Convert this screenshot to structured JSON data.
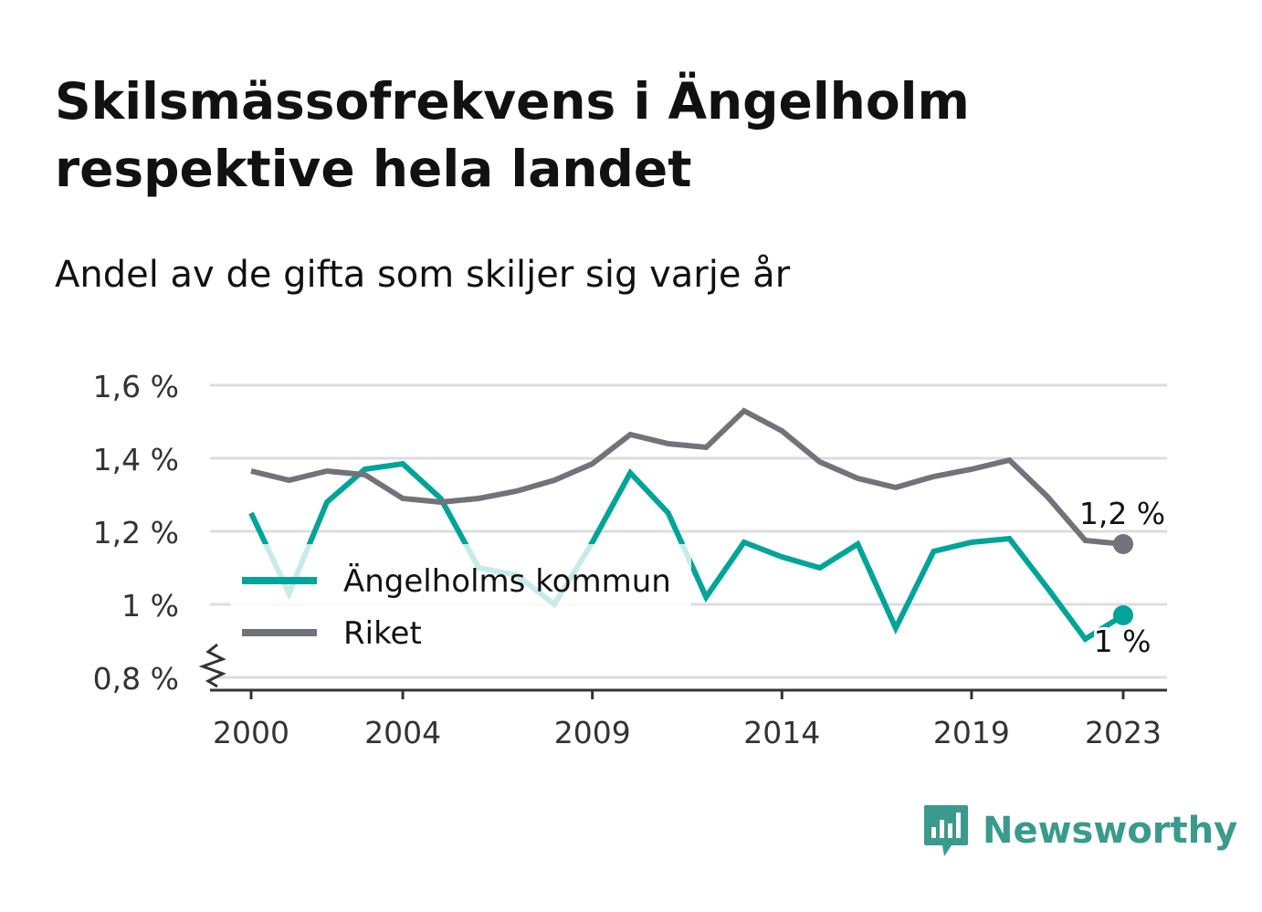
{
  "title": "Skilsmässofrekvens i Ängelholm respektive hela landet",
  "subtitle": "Andel av de gifta som skiljer sig varje år",
  "brand": {
    "name": "Newsworthy",
    "icon": "newsworthy-bar-chart-icon",
    "color": "#3a9a8b"
  },
  "colors": {
    "angelholm": "#00a499",
    "riket": "#72727a",
    "grid": "#dddddd",
    "axis": "#333333"
  },
  "chart_data": {
    "type": "line",
    "title": "Skilsmässofrekvens i Ängelholm respektive hela landet",
    "subtitle": "Andel av de gifta som skiljer sig varje år",
    "x": [
      2000,
      2001,
      2002,
      2003,
      2004,
      2005,
      2006,
      2007,
      2008,
      2009,
      2010,
      2011,
      2012,
      2013,
      2014,
      2015,
      2016,
      2017,
      2018,
      2019,
      2020,
      2021,
      2022,
      2023
    ],
    "x_ticks": [
      "2000",
      "2004",
      "2009",
      "2014",
      "2019",
      "2023"
    ],
    "y_ticks": [
      "0,8 %",
      "1 %",
      "1,2 %",
      "1,4 %",
      "1,6 %"
    ],
    "y_tick_values": [
      0.8,
      1.0,
      1.2,
      1.4,
      1.6
    ],
    "ylim": [
      0.8,
      1.6
    ],
    "y_axis_broken": true,
    "grid": true,
    "legend_position": "inside-left",
    "series": [
      {
        "name": "Ängelholms kommun",
        "color": "#00a499",
        "values": [
          1.25,
          1.03,
          1.28,
          1.37,
          1.385,
          1.29,
          1.1,
          1.08,
          1.0,
          1.17,
          1.36,
          1.25,
          1.02,
          1.17,
          1.13,
          1.1,
          1.165,
          0.935,
          1.145,
          1.17,
          1.18,
          1.045,
          0.905,
          0.97
        ],
        "end_label": "1 %"
      },
      {
        "name": "Riket",
        "color": "#72727a",
        "values": [
          1.365,
          1.34,
          1.365,
          1.355,
          1.29,
          1.28,
          1.29,
          1.31,
          1.34,
          1.385,
          1.465,
          1.44,
          1.43,
          1.53,
          1.475,
          1.39,
          1.345,
          1.32,
          1.35,
          1.37,
          1.395,
          1.295,
          1.175,
          1.165
        ],
        "end_label": "1,2 %"
      }
    ]
  }
}
